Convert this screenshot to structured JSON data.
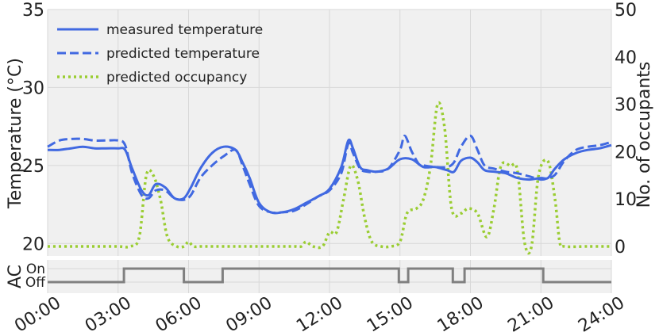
{
  "chart_data": [
    {
      "type": "line",
      "ylabel": "Temperature (°C)",
      "y2label": "No. of occupants",
      "ylim": [
        19.2,
        35
      ],
      "y2lim": [
        -2,
        50
      ],
      "yticks": [
        "20",
        "25",
        "30",
        "35"
      ],
      "y2ticks": [
        "0",
        "10",
        "20",
        "30",
        "40",
        "50"
      ],
      "xlim": [
        0,
        24
      ],
      "grid": true,
      "legend_position": "top-left",
      "colors": {
        "measured": "#4169E1",
        "predicted": "#4169E1",
        "occupancy": "#9ACD32",
        "ac": "#808080"
      },
      "series": [
        {
          "name": "measured temperature",
          "axis": "left",
          "style": "solid",
          "x": [
            0,
            0.5,
            1,
            1.5,
            2,
            2.5,
            3,
            3.3,
            3.6,
            4,
            4.3,
            4.6,
            5,
            5.4,
            5.8,
            6.1,
            6.5,
            7,
            7.5,
            8,
            8.3,
            8.6,
            9,
            9.5,
            10,
            10.5,
            11,
            11.5,
            12,
            12.5,
            12.8,
            13,
            13.3,
            13.6,
            14,
            14.5,
            15,
            15.5,
            16,
            16.5,
            17,
            17.3,
            17.6,
            18,
            18.3,
            18.6,
            19,
            19.5,
            20,
            20.5,
            21,
            21.3,
            21.6,
            22,
            22.5,
            23,
            23.5,
            24
          ],
          "values": [
            26.0,
            26.0,
            26.1,
            26.2,
            26.1,
            26.1,
            26.1,
            26.0,
            24.8,
            23.4,
            23.1,
            23.8,
            23.6,
            22.9,
            22.9,
            23.6,
            24.8,
            25.8,
            26.2,
            26.0,
            25.2,
            24.2,
            22.6,
            22.0,
            22.0,
            22.2,
            22.6,
            23.0,
            23.5,
            24.9,
            26.6,
            26.1,
            24.9,
            24.7,
            24.6,
            24.8,
            25.4,
            25.4,
            24.9,
            24.9,
            24.7,
            24.6,
            25.3,
            25.5,
            25.2,
            24.7,
            24.6,
            24.5,
            24.2,
            24.1,
            24.2,
            24.2,
            24.8,
            25.4,
            25.8,
            26.0,
            26.1,
            26.3
          ]
        },
        {
          "name": "predicted temperature",
          "axis": "left",
          "style": "dashed",
          "x": [
            0,
            0.5,
            1,
            1.5,
            2,
            2.5,
            3,
            3.3,
            3.6,
            4,
            4.3,
            4.6,
            5,
            5.4,
            5.8,
            6.1,
            6.5,
            7,
            7.5,
            8,
            8.3,
            8.6,
            9,
            9.5,
            10,
            10.5,
            11,
            11.5,
            12,
            12.5,
            12.8,
            13,
            13.3,
            13.6,
            14,
            14.5,
            15,
            15.2,
            15.5,
            15.8,
            16,
            16.5,
            17,
            17.3,
            17.6,
            18,
            18.3,
            18.6,
            19,
            19.5,
            20,
            20.5,
            21,
            21.3,
            21.6,
            22,
            22.5,
            23,
            23.5,
            24
          ],
          "values": [
            26.2,
            26.6,
            26.7,
            26.7,
            26.6,
            26.6,
            26.6,
            26.3,
            24.5,
            23.1,
            22.9,
            23.4,
            23.4,
            22.9,
            22.8,
            23.1,
            24.2,
            25.0,
            25.6,
            26.0,
            25.0,
            23.8,
            22.4,
            22.0,
            22.0,
            22.1,
            22.5,
            23.0,
            23.4,
            24.5,
            26.4,
            25.8,
            24.8,
            24.6,
            24.6,
            24.8,
            26.0,
            26.9,
            25.9,
            25.1,
            25.0,
            24.9,
            24.9,
            25.2,
            26.2,
            26.9,
            26.0,
            25.0,
            24.8,
            24.6,
            24.5,
            24.3,
            24.1,
            24.2,
            24.4,
            25.3,
            26.0,
            26.2,
            26.3,
            26.5
          ]
        },
        {
          "name": "predicted occupancy",
          "axis": "right",
          "style": "dotted",
          "x": [
            0,
            1,
            2,
            3,
            3.5,
            3.9,
            4.2,
            4.5,
            4.8,
            5.1,
            5.5,
            5.8,
            6.0,
            6.2,
            6.5,
            7,
            8,
            9,
            10,
            10.5,
            10.8,
            11,
            11.3,
            11.7,
            12,
            12.3,
            12.6,
            12.9,
            13.2,
            13.5,
            13.8,
            14.2,
            14.6,
            15,
            15.3,
            15.7,
            16,
            16.3,
            16.6,
            16.9,
            17.2,
            17.6,
            17.9,
            18.3,
            18.7,
            19,
            19.3,
            19.7,
            20.0,
            20.3,
            20.6,
            20.9,
            21.3,
            21.6,
            21.8,
            22,
            23,
            24
          ],
          "values": [
            0,
            0,
            0,
            0,
            0,
            2,
            15,
            15,
            10,
            2,
            0,
            0,
            1,
            0,
            0,
            0,
            0,
            0,
            0,
            0,
            0,
            1,
            0,
            0,
            3,
            3,
            10,
            17,
            14,
            6,
            1,
            0,
            0,
            1,
            7,
            8,
            10,
            17,
            30,
            25,
            8,
            7,
            8,
            7,
            2,
            8,
            17,
            17,
            16,
            1,
            0,
            15,
            18,
            10,
            1,
            0,
            0,
            0
          ]
        },
        {
          "name": "AC",
          "axis": "ac",
          "style": "step",
          "labels": [
            "On",
            "Off"
          ],
          "x": [
            0,
            3.25,
            3.25,
            5.8,
            5.8,
            7.45,
            7.45,
            14.95,
            14.95,
            15.35,
            15.35,
            17.25,
            17.25,
            17.75,
            17.75,
            21.1,
            21.1,
            24
          ],
          "values": [
            0,
            0,
            1,
            1,
            0,
            0,
            1,
            1,
            0,
            0,
            1,
            1,
            0,
            0,
            1,
            1,
            0,
            0
          ]
        }
      ],
      "xticks": [
        "00:00",
        "03:00",
        "06:00",
        "09:00",
        "12:00",
        "15:00",
        "18:00",
        "21:00",
        "24:00"
      ],
      "aclabel": "AC"
    }
  ]
}
